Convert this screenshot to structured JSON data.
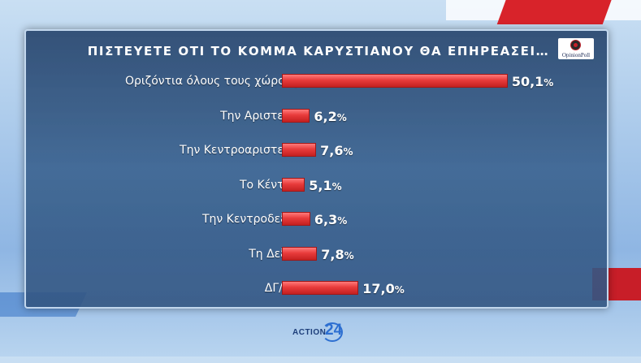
{
  "chart_data": {
    "type": "bar",
    "orientation": "horizontal",
    "title": "ΠΙΣΤΕΥΕΤΕ ΟΤΙ ΤΟ ΚΟΜΜΑ ΚΑΡΥΣΤΙΑΝΟΥ ΘΑ ΕΠΗΡΕΑΣΕΙ…",
    "categories": [
      "Οριζόντια όλους τους χώρους",
      "Την Αριστερά",
      "Την Κεντροαριστερά",
      "Το Κέντρο",
      "Την Κεντροδεξιά",
      "Τη Δεξιά",
      "ΔΓ/ΔΑ"
    ],
    "values": [
      50.1,
      6.2,
      7.6,
      5.1,
      6.3,
      7.8,
      17.0
    ],
    "value_labels": [
      "50,1",
      "6,2",
      "7,6",
      "5,1",
      "6,3",
      "7,8",
      "17,0"
    ],
    "unit": "%",
    "xlim": [
      0,
      55
    ],
    "grid": false,
    "bar_color": "#e83b3b"
  },
  "logo": {
    "name": "opinion-poll-logo",
    "text": "OpinionPoll"
  },
  "brand": {
    "name": "action24-logo",
    "text": "ACTION",
    "number": "24"
  },
  "colors": {
    "panel": "#2f5787",
    "bar": "#e83b3b",
    "text": "#ffffff"
  }
}
